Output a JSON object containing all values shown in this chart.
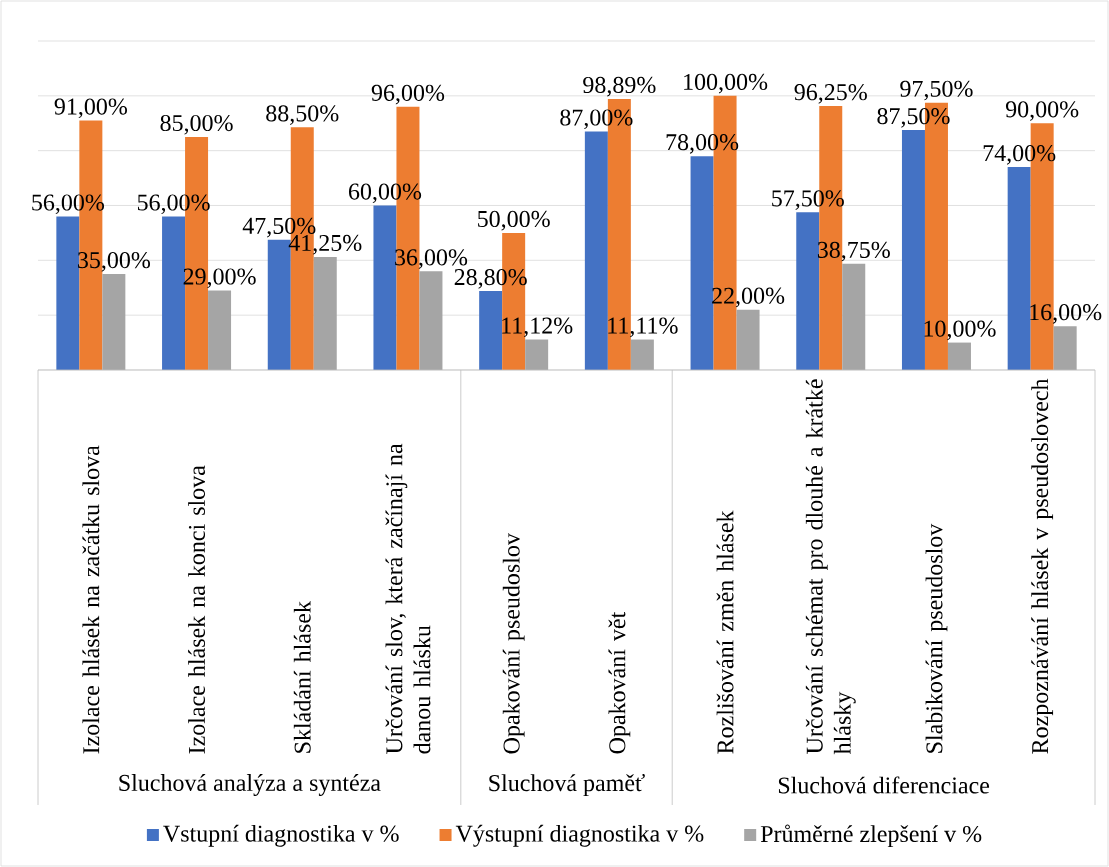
{
  "chart_data": {
    "type": "bar",
    "categories": [
      "Izolace hlásek na začátku slova",
      "Izolace hlásek na konci slova",
      "Skládání hlásek",
      "Určování slov, která začínají na danou hlásku",
      "Opakování pseudoslov",
      "Opakování vět",
      "Rozlišování změn hlásek",
      "Určování schémat pro dlouhé a krátké hlásky",
      "Slabikování pseudoslov",
      "Rozpoznávání hlásek v pseudoslovech"
    ],
    "series": [
      {
        "name": "Vstupní diagnostika v %",
        "color": "#4472c4",
        "values": [
          56,
          56,
          47.5,
          60,
          28.8,
          87,
          78,
          57.5,
          87.5,
          74
        ],
        "value_labels": [
          "56,00%",
          "56,00%",
          "47,50%",
          "60,00%",
          "28,80%",
          "87,00%",
          "78,00%",
          "57,50%",
          "87,50%",
          "74,00%"
        ]
      },
      {
        "name": "Výstupní diagnostika v %",
        "color": "#ed7d31",
        "values": [
          91,
          85,
          88.5,
          96,
          50,
          98.89,
          100,
          96.25,
          97.5,
          90
        ],
        "value_labels": [
          "91,00%",
          "85,00%",
          "88,50%",
          "96,00%",
          "50,00%",
          "98,89%",
          "100,00%",
          "96,25%",
          "97,50%",
          "90,00%"
        ]
      },
      {
        "name": "Průměrné zlepšení v %",
        "color": "#a5a5a5",
        "values": [
          35,
          29,
          41.25,
          36,
          11.12,
          11.11,
          22,
          38.75,
          10,
          16
        ],
        "value_labels": [
          "35,00%",
          "29,00%",
          "41,25%",
          "36,00%",
          "11,12%",
          "11,11%",
          "22,00%",
          "38,75%",
          "10,00%",
          "16,00%"
        ]
      }
    ],
    "annotations": [
      "Sluchová analýza a syntéza",
      "Sluchová paměť",
      "Sluchová diferenciace"
    ],
    "ylim": [
      0,
      120
    ],
    "yticks": [
      {
        "value": 0,
        "label": null
      },
      {
        "value": 20,
        "label": null
      },
      {
        "value": 40,
        "label": null
      },
      {
        "value": 60,
        "label": null
      },
      {
        "value": 80,
        "label": null
      },
      {
        "value": 100,
        "label": null
      },
      {
        "value": 120,
        "label": null
      }
    ],
    "grid": "y",
    "tick_labels": "x",
    "legend": "bottom"
  }
}
